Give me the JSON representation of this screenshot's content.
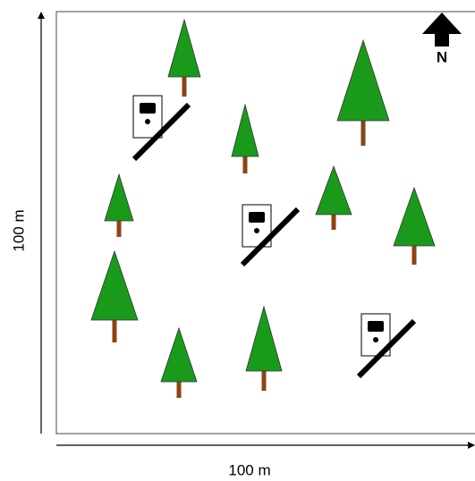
{
  "axes": {
    "x_label": "100 m",
    "y_label": "100 m"
  },
  "north_label": "N"
}
